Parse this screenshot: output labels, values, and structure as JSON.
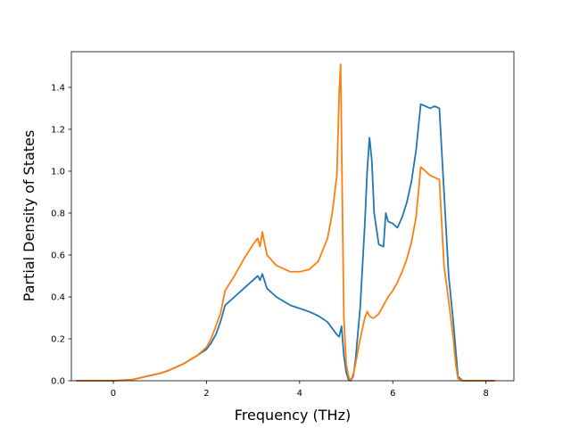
{
  "chart_data": {
    "type": "line",
    "xlabel": "Frequency (THz)",
    "ylabel": "Partial Density of States",
    "xlim": [
      -0.9,
      8.6
    ],
    "ylim": [
      0,
      1.57
    ],
    "xticks": [
      0,
      2,
      4,
      6,
      8
    ],
    "yticks": [
      0.0,
      0.2,
      0.4,
      0.6,
      0.8,
      1.0,
      1.2,
      1.4
    ],
    "xtick_labels": [
      "0",
      "2",
      "4",
      "6",
      "8"
    ],
    "ytick_labels": [
      "0.0",
      "0.2",
      "0.4",
      "0.6",
      "0.8",
      "1.0",
      "1.2",
      "1.4"
    ],
    "grid": false,
    "series": [
      {
        "color": "#1f77b4",
        "x": [
          -0.8,
          0.0,
          0.4,
          0.7,
          1.0,
          1.2,
          1.5,
          1.8,
          2.0,
          2.1,
          2.2,
          2.3,
          2.4,
          2.6,
          2.8,
          3.0,
          3.1,
          3.15,
          3.2,
          3.3,
          3.5,
          3.8,
          4.0,
          4.2,
          4.4,
          4.6,
          4.8,
          4.85,
          4.9,
          4.95,
          5.0,
          5.05,
          5.1,
          5.15,
          5.2,
          5.3,
          5.4,
          5.45,
          5.5,
          5.55,
          5.6,
          5.7,
          5.8,
          5.85,
          5.9,
          6.0,
          6.1,
          6.2,
          6.3,
          6.4,
          6.5,
          6.6,
          6.7,
          6.8,
          6.9,
          7.0,
          7.1,
          7.2,
          7.3,
          7.35,
          7.4,
          7.5,
          7.8,
          8.2
        ],
        "y": [
          0,
          0,
          0.005,
          0.02,
          0.035,
          0.05,
          0.08,
          0.12,
          0.15,
          0.18,
          0.22,
          0.28,
          0.36,
          0.4,
          0.44,
          0.48,
          0.5,
          0.48,
          0.51,
          0.44,
          0.4,
          0.36,
          0.345,
          0.33,
          0.31,
          0.28,
          0.22,
          0.21,
          0.26,
          0.12,
          0.04,
          0.005,
          0,
          0.02,
          0.1,
          0.35,
          0.75,
          1.0,
          1.16,
          1.05,
          0.8,
          0.65,
          0.64,
          0.8,
          0.76,
          0.75,
          0.73,
          0.78,
          0.85,
          0.95,
          1.1,
          1.32,
          1.31,
          1.3,
          1.31,
          1.3,
          0.9,
          0.5,
          0.28,
          0.15,
          0.02,
          0,
          0,
          0
        ]
      },
      {
        "color": "#ff7f0e",
        "x": [
          -0.8,
          0.0,
          0.4,
          0.7,
          1.0,
          1.2,
          1.5,
          1.8,
          2.0,
          2.1,
          2.2,
          2.3,
          2.4,
          2.6,
          2.8,
          3.0,
          3.1,
          3.15,
          3.2,
          3.3,
          3.5,
          3.8,
          4.0,
          4.2,
          4.4,
          4.6,
          4.7,
          4.8,
          4.85,
          4.88,
          4.92,
          4.95,
          5.0,
          5.05,
          5.1,
          5.15,
          5.2,
          5.3,
          5.4,
          5.45,
          5.5,
          5.55,
          5.6,
          5.7,
          5.8,
          5.9,
          6.0,
          6.1,
          6.2,
          6.3,
          6.4,
          6.5,
          6.6,
          6.7,
          6.8,
          6.9,
          7.0,
          7.1,
          7.2,
          7.3,
          7.35,
          7.4,
          7.5,
          7.8,
          8.2
        ],
        "y": [
          0,
          0,
          0.005,
          0.02,
          0.035,
          0.05,
          0.08,
          0.12,
          0.16,
          0.2,
          0.26,
          0.32,
          0.43,
          0.5,
          0.58,
          0.65,
          0.68,
          0.64,
          0.71,
          0.6,
          0.55,
          0.52,
          0.52,
          0.53,
          0.57,
          0.68,
          0.8,
          0.98,
          1.38,
          1.51,
          0.8,
          0.3,
          0.08,
          0.02,
          0,
          0.03,
          0.08,
          0.2,
          0.3,
          0.33,
          0.31,
          0.3,
          0.3,
          0.32,
          0.36,
          0.4,
          0.43,
          0.47,
          0.52,
          0.58,
          0.66,
          0.78,
          1.02,
          1.0,
          0.98,
          0.97,
          0.96,
          0.55,
          0.38,
          0.2,
          0.08,
          0.01,
          0,
          0,
          0
        ]
      }
    ]
  }
}
